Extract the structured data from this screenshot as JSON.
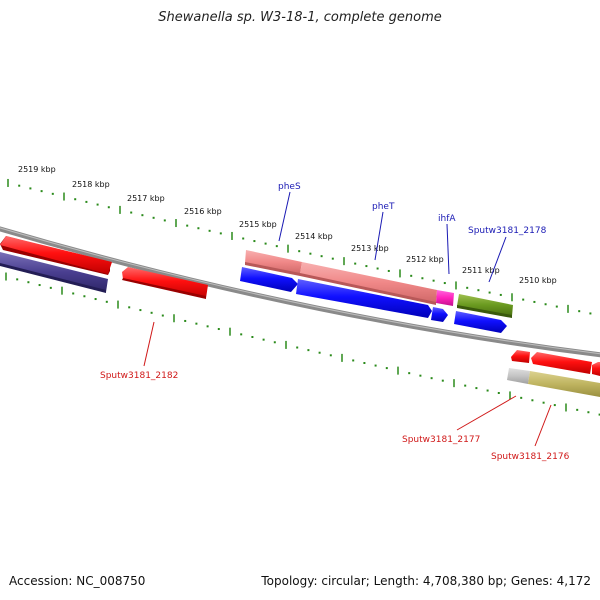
{
  "title": "Shewanella sp. W3-18-1, complete genome",
  "footer": {
    "accession": "Accession: NC_008750",
    "topology": "Topology: circular; Length: 4,708,380 bp; Genes: 4,172"
  },
  "colors": {
    "backbone": "#8a8a8a",
    "tick_green": "#2a8a1a",
    "label_forward": "#1a1ab4",
    "label_reverse": "#d01818"
  },
  "scale": {
    "tick_labels": [
      "2519 kbp",
      "2518 kbp",
      "2517 kbp",
      "2516 kbp",
      "2515 kbp",
      "2514 kbp",
      "2513 kbp",
      "2512 kbp",
      "2511 kbp",
      "2510 kbp"
    ]
  },
  "genes": {
    "forward_labels": [
      "pheS",
      "pheT",
      "ihfA",
      "Sputw3181_2178"
    ],
    "reverse_labels": [
      "Sputw3181_2182",
      "Sputw3181_2177",
      "Sputw3181_2176"
    ]
  }
}
